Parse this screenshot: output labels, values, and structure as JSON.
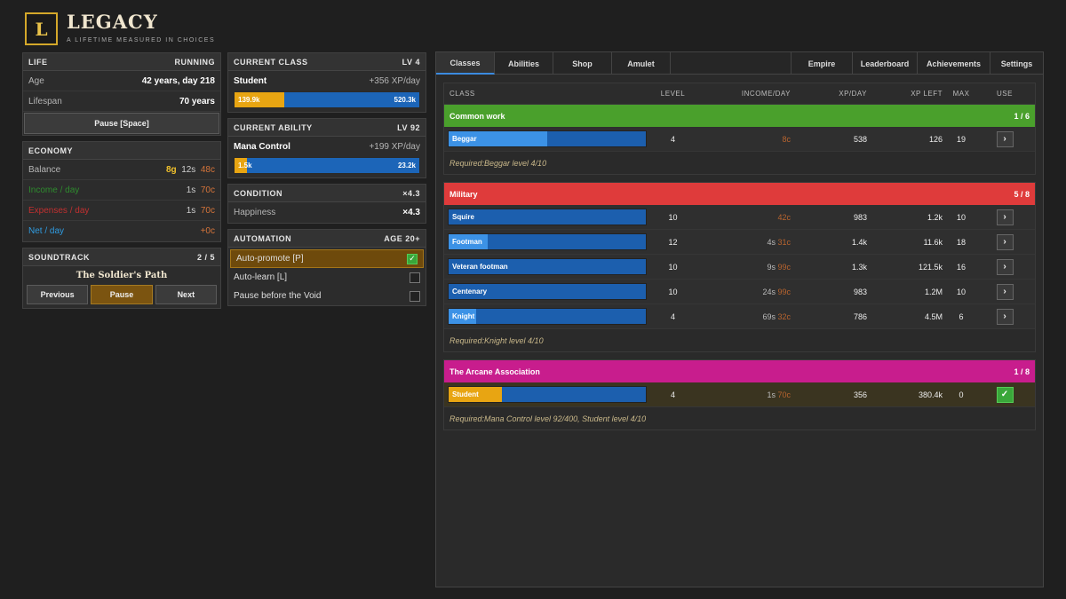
{
  "app": {
    "logo_letter": "L",
    "title": "LEGACY",
    "tagline": "A LIFETIME MEASURED IN CHOICES"
  },
  "life": {
    "title": "LIFE",
    "status": "RUNNING",
    "age_label": "Age",
    "age_value": "42 years, day 218",
    "lifespan_label": "Lifespan",
    "lifespan_value": "70 years",
    "pause_button": "Pause [Space]"
  },
  "economy": {
    "title": "ECONOMY",
    "balance_label": "Balance",
    "balance_gold": "8g",
    "balance_silver": "12s",
    "balance_copper": "48c",
    "income_label": "Income / day",
    "income_silver": "1s",
    "income_copper": "70c",
    "expenses_label": "Expenses / day",
    "expenses_silver": "1s",
    "expenses_copper": "70c",
    "net_label": "Net / day",
    "net_value": "+0c",
    "colors": {
      "income": "#2e8b2e",
      "expenses": "#c03030",
      "net": "#2f9be0"
    }
  },
  "soundtrack": {
    "title": "SOUNDTRACK",
    "track_pos": "2 / 5",
    "track_name": "The Soldier's Path",
    "prev": "Previous",
    "pause": "Pause",
    "next": "Next"
  },
  "current_class": {
    "title": "CURRENT CLASS",
    "level": "LV 4",
    "name": "Student",
    "rate": "+356 XP/day",
    "xp_current": "139.9k",
    "xp_needed": "520.3k",
    "progress": 0.27
  },
  "current_ability": {
    "title": "CURRENT ABILITY",
    "level": "LV 92",
    "name": "Mana Control",
    "rate": "+199 XP/day",
    "xp_current": "1.5k",
    "xp_needed": "23.2k",
    "progress": 0.065
  },
  "condition": {
    "title": "CONDITION",
    "multiplier": "×4.3",
    "happiness_label": "Happiness",
    "happiness_value": "×4.3"
  },
  "automation": {
    "title": "AUTOMATION",
    "age_req": "AGE 20+",
    "items": [
      {
        "label": "Auto-promote [P]",
        "checked": true,
        "mark": "✓"
      },
      {
        "label": "Auto-learn [L]",
        "checked": false,
        "mark": ""
      },
      {
        "label": "Pause before the Void",
        "checked": false,
        "mark": ""
      }
    ]
  },
  "tabs": {
    "classes": "Classes",
    "abilities": "Abilities",
    "shop": "Shop",
    "amulet": "Amulet",
    "empire": "Empire",
    "leaderboard": "Leaderboard",
    "achievements": "Achievements",
    "settings": "Settings"
  },
  "table": {
    "headers": {
      "class": "CLASS",
      "level": "LEVEL",
      "income": "INCOME/DAY",
      "xp": "XP/DAY",
      "xp_left": "XP LEFT",
      "max": "MAX",
      "use": "USE"
    },
    "groups": [
      {
        "name": "Common work",
        "count": "1 / 6",
        "color": "#4aa02c",
        "req": "Required:Beggar level 4/10",
        "rows": [
          {
            "name": "Beggar",
            "progress": 0.5,
            "level": "4",
            "inc_s": "",
            "inc_c": "8c",
            "xp": "538",
            "xp_left": "126",
            "max": "19",
            "use": "›",
            "active": false
          }
        ]
      },
      {
        "name": "Military",
        "count": "5 / 8",
        "color": "#df3b3b",
        "req": "Required:Knight level 4/10",
        "rows": [
          {
            "name": "Squire",
            "progress": 0.0,
            "level": "10",
            "inc_s": "",
            "inc_c": "42c",
            "xp": "983",
            "xp_left": "1.2k",
            "max": "10",
            "use": "›",
            "active": false
          },
          {
            "name": "Footman",
            "progress": 0.2,
            "level": "12",
            "inc_s": "4s",
            "inc_c": "31c",
            "xp": "1.4k",
            "xp_left": "11.6k",
            "max": "18",
            "use": "›",
            "active": false
          },
          {
            "name": "Veteran footman",
            "progress": 0.0,
            "level": "10",
            "inc_s": "9s",
            "inc_c": "99c",
            "xp": "1.3k",
            "xp_left": "121.5k",
            "max": "16",
            "use": "›",
            "active": false
          },
          {
            "name": "Centenary",
            "progress": 0.0,
            "level": "10",
            "inc_s": "24s",
            "inc_c": "99c",
            "xp": "983",
            "xp_left": "1.2M",
            "max": "10",
            "use": "›",
            "active": false
          },
          {
            "name": "Knight",
            "progress": 0.14,
            "level": "4",
            "inc_s": "69s",
            "inc_c": "32c",
            "xp": "786",
            "xp_left": "4.5M",
            "max": "6",
            "use": "›",
            "active": false
          }
        ]
      },
      {
        "name": "The Arcane Association",
        "count": "1 / 8",
        "color": "#c81d8d",
        "req": "Required:Mana Control level 92/400, Student level 4/10",
        "rows": [
          {
            "name": "Student",
            "progress": 0.27,
            "level": "4",
            "inc_s": "1s",
            "inc_c": "70c",
            "xp": "356",
            "xp_left": "380.4k",
            "max": "0",
            "use": "✓",
            "active": true
          }
        ]
      }
    ]
  }
}
